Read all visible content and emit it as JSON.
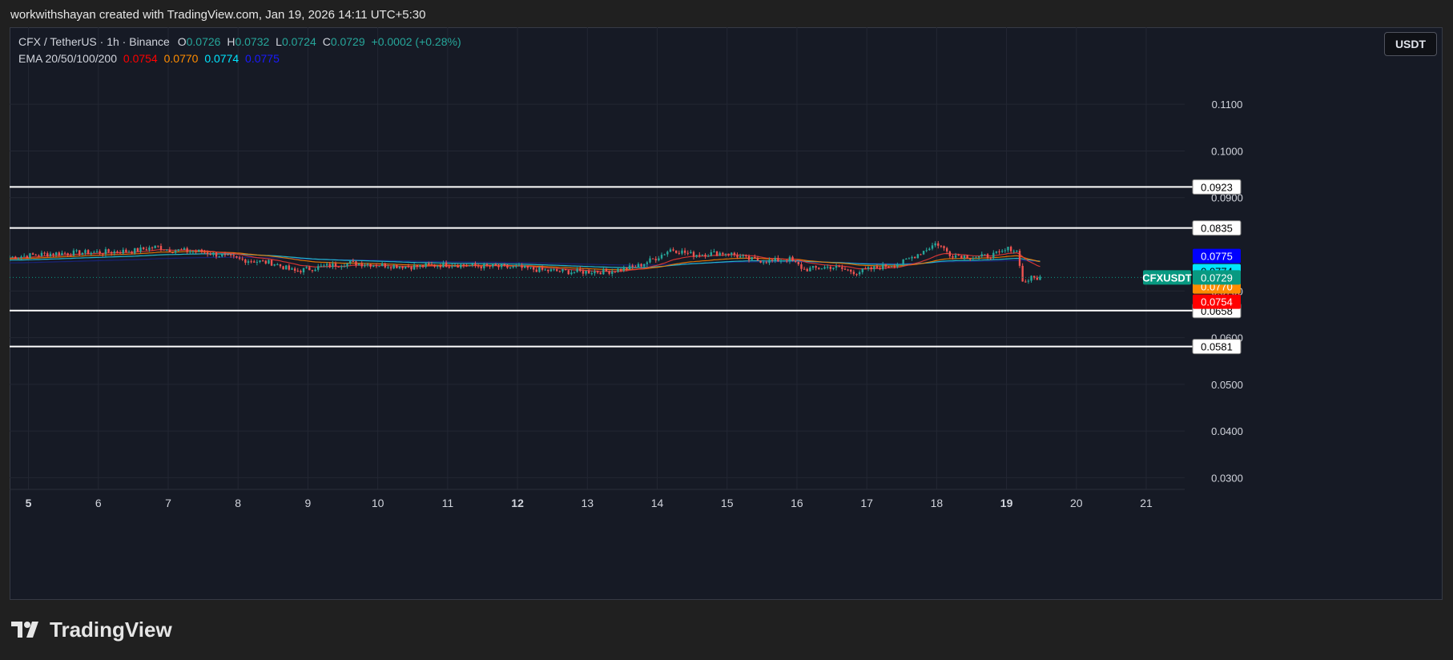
{
  "attribution": "workwithshayan created with TradingView.com, Jan 19, 2026 14:11 UTC+5:30",
  "legend": {
    "symbol": "CFX / TetherUS · 1h · Binance",
    "o_label": "O",
    "o": "0.0726",
    "h_label": "H",
    "h": "0.0732",
    "l_label": "L",
    "l": "0.0724",
    "c_label": "C",
    "c": "0.0729",
    "change": "+0.0002 (+0.28%)",
    "ema_label": "EMA 20/50/100/200",
    "ema20": "0.0754",
    "ema50": "0.0770",
    "ema100": "0.0774",
    "ema200": "0.0775"
  },
  "currency_button": "USDT",
  "footer": {
    "brand": "TradingView"
  },
  "colors": {
    "background": "#161a25",
    "up": "#26a69a",
    "down": "#ef5350",
    "ema20": "#e53935",
    "ema50": "#f57c00",
    "ema100": "#26c6da",
    "ema200": "#1a237e"
  },
  "chart_data": {
    "type": "candlestick",
    "symbol": "CFXUSDT",
    "timeframe": "1h",
    "ylim": [
      0.0275,
      0.1265
    ],
    "y_ticks": [
      "0.1100",
      "0.1000",
      "0.0900",
      "0.0700",
      "0.0600",
      "0.0500",
      "0.0400",
      "0.0300"
    ],
    "y_tick_values": [
      0.11,
      0.1,
      0.09,
      0.07,
      0.06,
      0.05,
      0.04,
      0.03
    ],
    "x_ticks": [
      "5",
      "6",
      "7",
      "8",
      "9",
      "10",
      "11",
      "12",
      "13",
      "14",
      "15",
      "16",
      "17",
      "18",
      "19",
      "20",
      "21"
    ],
    "x_bold": [
      "5",
      "12",
      "19"
    ],
    "xlim_days": [
      4.73,
      21.55
    ],
    "last_candle_day": 19.52,
    "grid": true,
    "horizontal_levels": [
      {
        "value": 0.0923,
        "label": "0.0923"
      },
      {
        "value": 0.0835,
        "label": "0.0835"
      },
      {
        "value": 0.0658,
        "label": "0.0658"
      },
      {
        "value": 0.0581,
        "label": "0.0581"
      }
    ],
    "price_labels": [
      {
        "value": 0.0775,
        "label": "0.0775",
        "color": "#0000ff"
      },
      {
        "value": 0.0774,
        "label": "0.0774",
        "color": "#00e5ff"
      },
      {
        "value": 0.077,
        "label": "0.0770",
        "color": "#ff8c00"
      },
      {
        "value": 0.0754,
        "label": "0.0754",
        "color": "#ff0000"
      }
    ],
    "last_price": {
      "value": 0.0729,
      "label": "0.0729",
      "tag": "CFXUSDT",
      "color": "#089981"
    },
    "price_anchors": [
      [
        4.73,
        0.0772
      ],
      [
        5.3,
        0.078
      ],
      [
        6.0,
        0.0783
      ],
      [
        6.5,
        0.0786
      ],
      [
        6.85,
        0.0795
      ],
      [
        7.0,
        0.0788
      ],
      [
        7.5,
        0.0784
      ],
      [
        8.0,
        0.0768
      ],
      [
        8.5,
        0.076
      ],
      [
        8.8,
        0.0742
      ],
      [
        9.2,
        0.0752
      ],
      [
        9.6,
        0.076
      ],
      [
        10.0,
        0.0756
      ],
      [
        10.5,
        0.0752
      ],
      [
        11.0,
        0.0757
      ],
      [
        11.5,
        0.0753
      ],
      [
        12.0,
        0.075
      ],
      [
        12.4,
        0.0744
      ],
      [
        12.8,
        0.0741
      ],
      [
        13.3,
        0.0742
      ],
      [
        13.7,
        0.0752
      ],
      [
        14.0,
        0.0772
      ],
      [
        14.2,
        0.079
      ],
      [
        14.5,
        0.0778
      ],
      [
        15.0,
        0.0782
      ],
      [
        15.3,
        0.0768
      ],
      [
        15.6,
        0.0764
      ],
      [
        15.9,
        0.0768
      ],
      [
        16.1,
        0.0746
      ],
      [
        16.5,
        0.0752
      ],
      [
        16.85,
        0.074
      ],
      [
        17.2,
        0.0752
      ],
      [
        17.5,
        0.076
      ],
      [
        17.8,
        0.0785
      ],
      [
        18.0,
        0.0803
      ],
      [
        18.2,
        0.0778
      ],
      [
        18.6,
        0.0772
      ],
      [
        18.9,
        0.078
      ],
      [
        19.05,
        0.0792
      ],
      [
        19.17,
        0.0783
      ],
      [
        19.22,
        0.0718
      ],
      [
        19.35,
        0.0727
      ],
      [
        19.52,
        0.0729
      ]
    ],
    "ema_values": {
      "ema20": 0.0754,
      "ema50": 0.077,
      "ema100": 0.0774,
      "ema200": 0.0775
    }
  }
}
